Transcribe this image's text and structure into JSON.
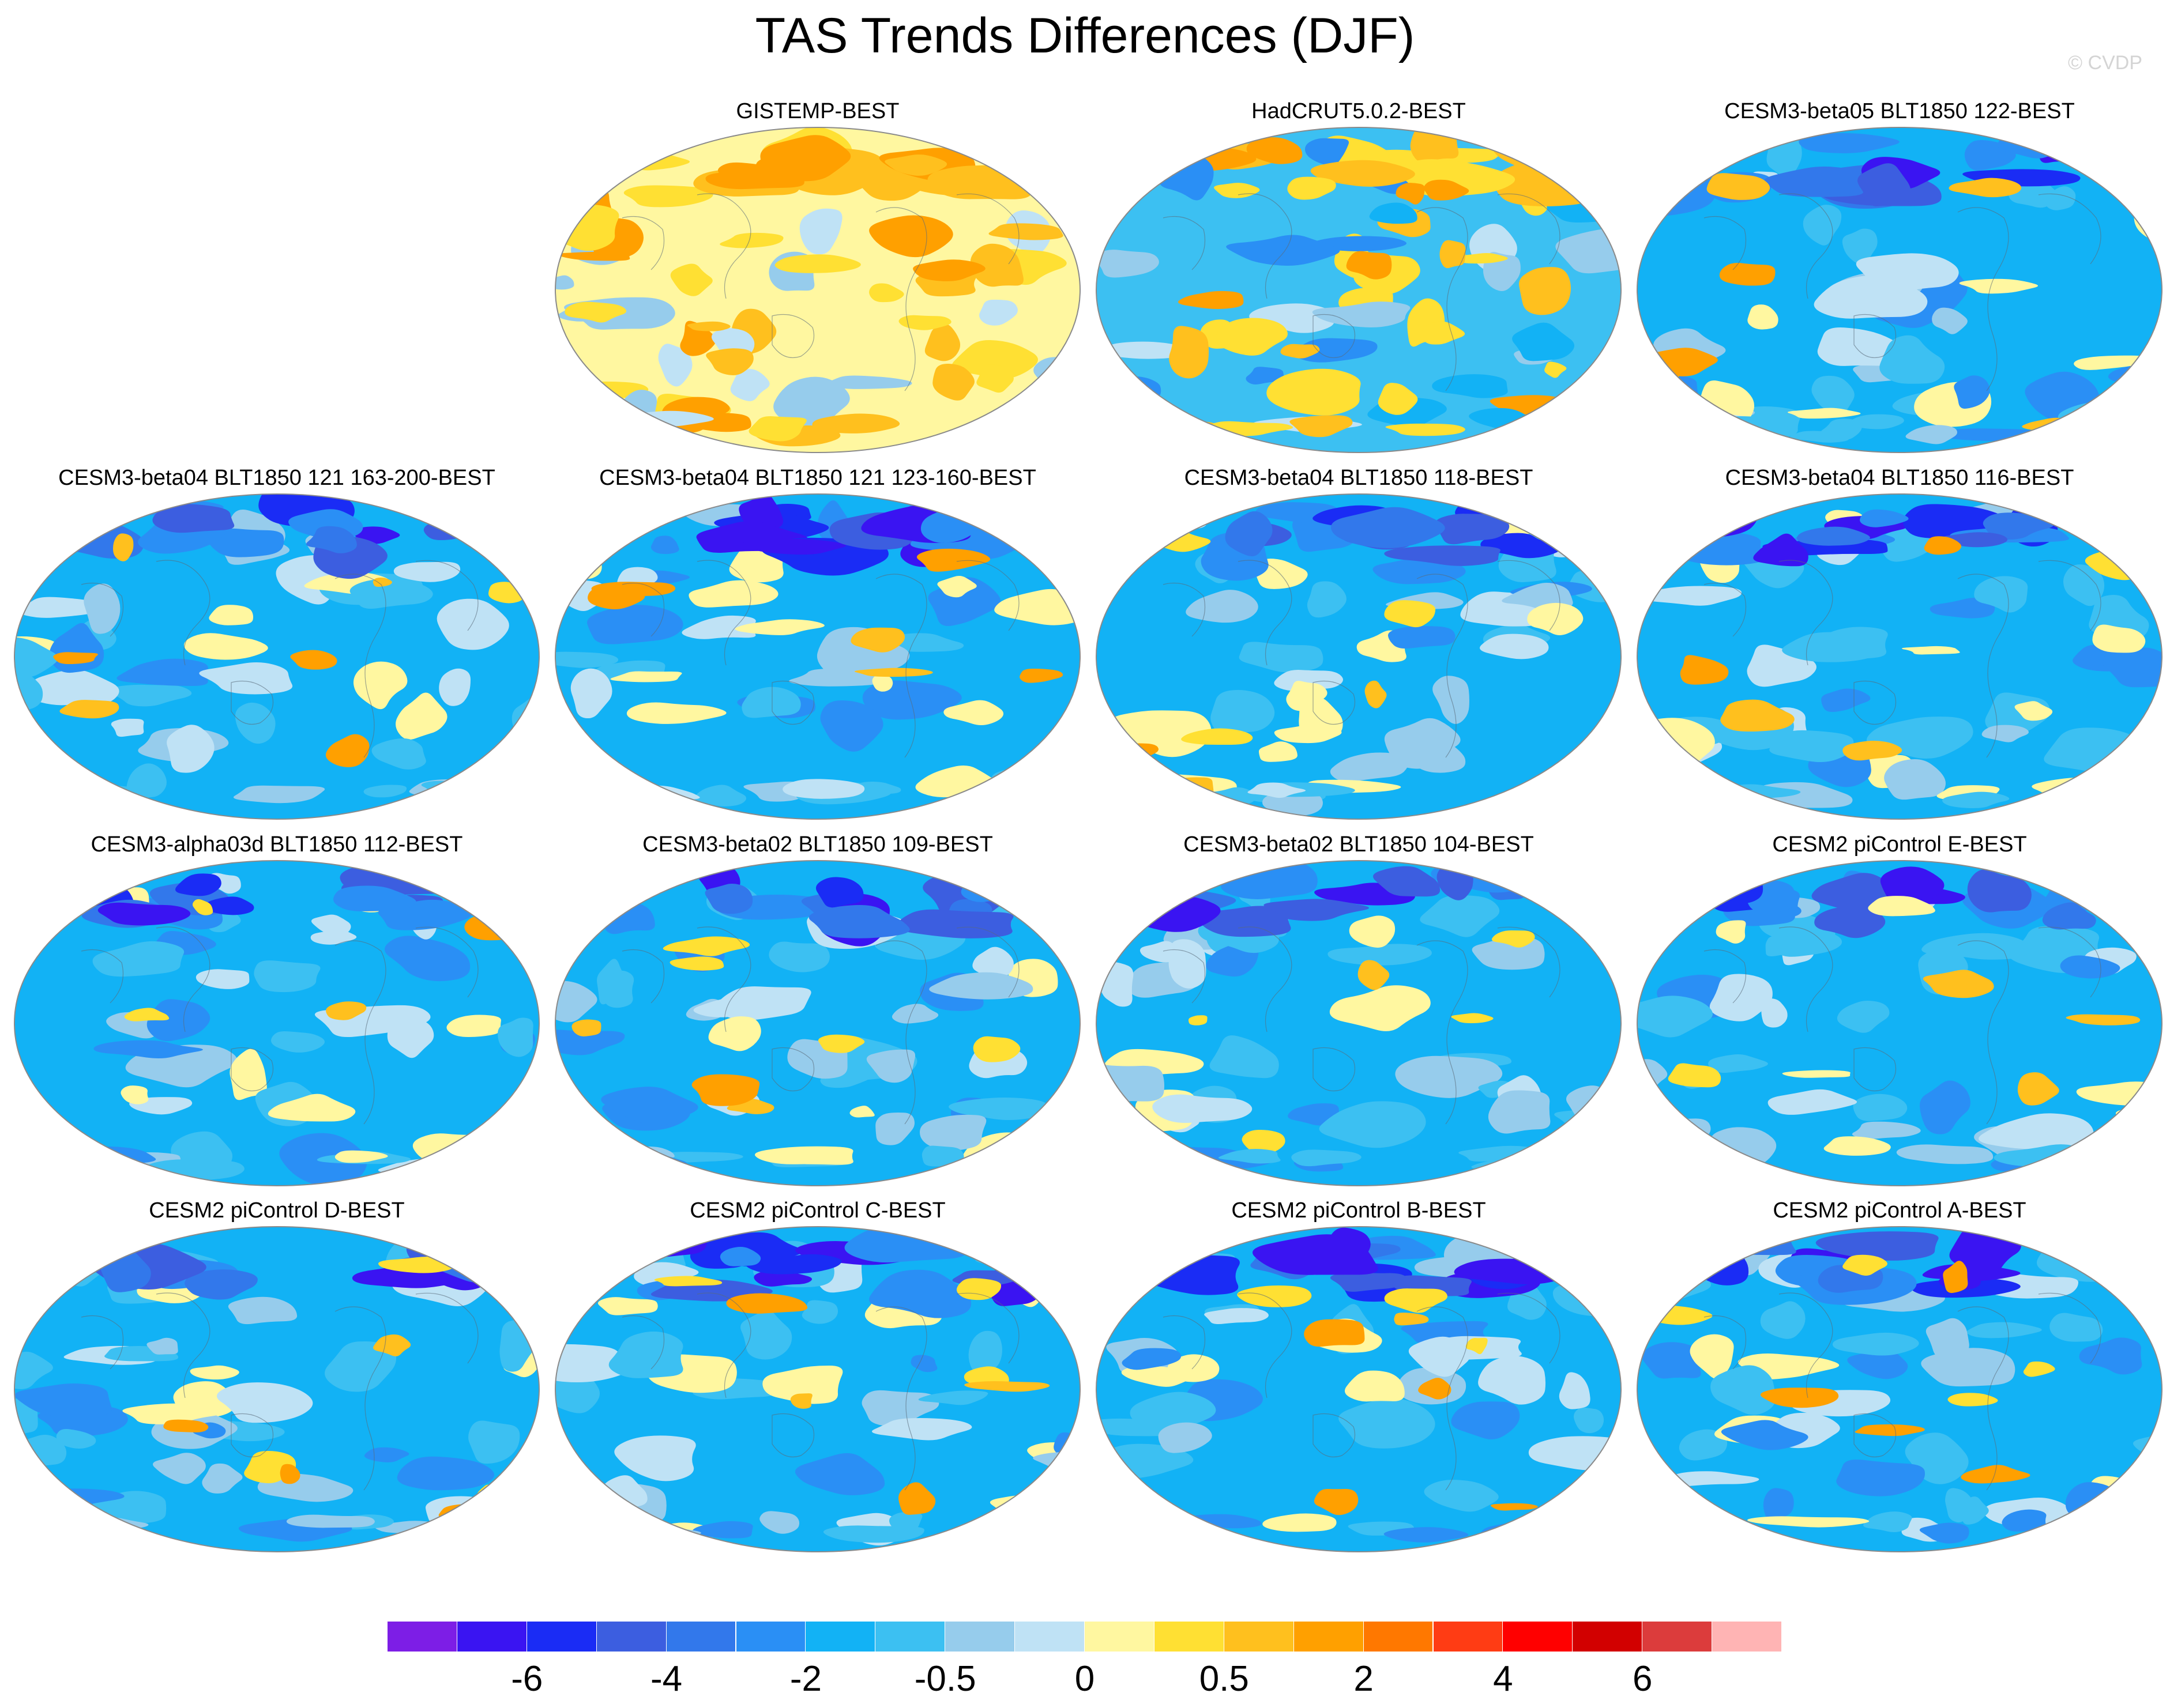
{
  "chart_data": {
    "type": "heatmap",
    "title": "TAS Trends Differences (DJF)",
    "watermark": "© CVDP",
    "projection": "global-map",
    "panels": [
      {
        "title": "GISTEMP-BEST",
        "style": "warm"
      },
      {
        "title": "HadCRUT5.0.2-BEST",
        "style": "mixed"
      },
      {
        "title": "CESM3-beta05 BLT1850 122-BEST",
        "style": "cool"
      },
      {
        "title": "CESM3-beta04 BLT1850 121 163-200-BEST",
        "style": "cool"
      },
      {
        "title": "CESM3-beta04 BLT1850 121 123-160-BEST",
        "style": "cool"
      },
      {
        "title": "CESM3-beta04 BLT1850 118-BEST",
        "style": "cool"
      },
      {
        "title": "CESM3-beta04 BLT1850 116-BEST",
        "style": "cool"
      },
      {
        "title": "CESM3-alpha03d BLT1850 112-BEST",
        "style": "cool"
      },
      {
        "title": "CESM3-beta02 BLT1850 109-BEST",
        "style": "cool"
      },
      {
        "title": "CESM3-beta02 BLT1850 104-BEST",
        "style": "cool"
      },
      {
        "title": "CESM2 piControl E-BEST",
        "style": "cool"
      },
      {
        "title": "CESM2 piControl D-BEST",
        "style": "cool"
      },
      {
        "title": "CESM2 piControl C-BEST",
        "style": "cool"
      },
      {
        "title": "CESM2 piControl B-BEST",
        "style": "cool"
      },
      {
        "title": "CESM2 piControl A-BEST",
        "style": "cool"
      }
    ],
    "colorbar": {
      "colors": [
        "#7d1ee6",
        "#3a14f2",
        "#1a2cf5",
        "#3c5ee0",
        "#3278eb",
        "#2a8ff5",
        "#12b2f5",
        "#3cc0f2",
        "#96ccec",
        "#bfe2f5",
        "#fff7a0",
        "#ffe033",
        "#ffc01e",
        "#ffa000",
        "#ff7800",
        "#ff3c14",
        "#ff0000",
        "#d20000",
        "#dc3c3c",
        "#ffb4b4"
      ],
      "labels": [
        "-6",
        "-4",
        "-2",
        "-0.5",
        "0",
        "0.5",
        "2",
        "4",
        "6"
      ]
    }
  }
}
